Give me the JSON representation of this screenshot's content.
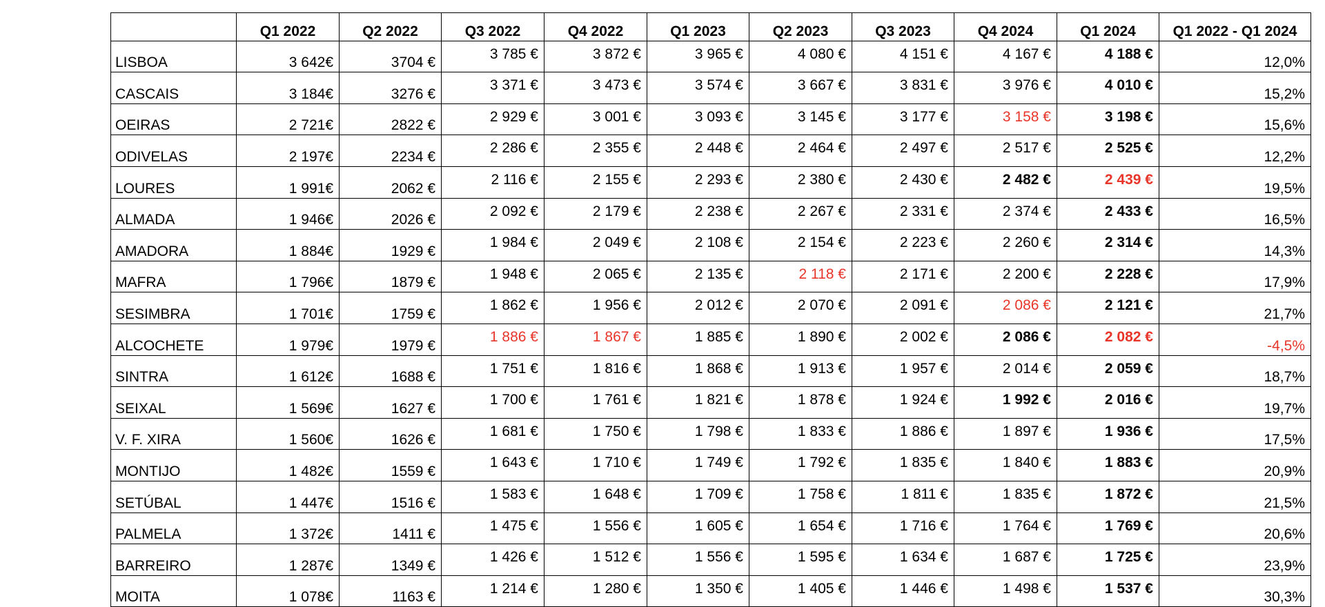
{
  "table": {
    "headers": [
      "",
      "Q1 2022",
      "Q2 2022",
      "Q3 2022",
      "Q4 2022",
      "Q1 2023",
      "Q2 2023",
      "Q3 2023",
      "Q4 2024",
      "Q1 2024",
      "Q1 2022 - Q1 2024"
    ],
    "rows": [
      {
        "name": "LISBOA",
        "q1_2022": "3 642€",
        "q2_2022": "3704 €",
        "vals": [
          "3 785 €",
          "3 872 €",
          "3 965 €",
          "4 080 €",
          "4 151 €",
          "4 167 €",
          "4 188 €"
        ],
        "change": "12,0%"
      },
      {
        "name": "CASCAIS",
        "q1_2022": "3 184€",
        "q2_2022": "3276 €",
        "vals": [
          "3 371 €",
          "3 473 €",
          "3 574 €",
          "3 667 €",
          "3 831 €",
          "3 976 €",
          "4 010 €"
        ],
        "change": "15,2%"
      },
      {
        "name": "OEIRAS",
        "q1_2022": "2 721€",
        "q2_2022": "2822 €",
        "vals": [
          "2 929 €",
          "3 001 €",
          "3 093 €",
          "3 145 €",
          "3 177 €",
          "3 158 €",
          "3 198 €"
        ],
        "change": "15,6%"
      },
      {
        "name": "ODIVELAS",
        "q1_2022": "2 197€",
        "q2_2022": "2234 €",
        "vals": [
          "2 286 €",
          "2 355 €",
          "2 448 €",
          "2 464 €",
          "2 497 €",
          "2 517 €",
          "2 525 €"
        ],
        "change": "12,2%"
      },
      {
        "name": "LOURES",
        "q1_2022": "1 991€",
        "q2_2022": "2062 €",
        "vals": [
          "2 116 €",
          "2 155 €",
          "2 293 €",
          "2 380 €",
          "2 430 €",
          "2 482 €",
          "2 439 €"
        ],
        "change": "19,5%"
      },
      {
        "name": "ALMADA",
        "q1_2022": "1 946€",
        "q2_2022": "2026 €",
        "vals": [
          "2 092 €",
          "2 179 €",
          "2 238 €",
          "2 267 €",
          "2 331 €",
          "2 374 €",
          "2 433 €"
        ],
        "change": "16,5%"
      },
      {
        "name": "AMADORA",
        "q1_2022": "1 884€",
        "q2_2022": "1929 €",
        "vals": [
          "1 984 €",
          "2 049 €",
          "2 108 €",
          "2 154 €",
          "2 223 €",
          "2 260 €",
          "2 314 €"
        ],
        "change": "14,3%"
      },
      {
        "name": "MAFRA",
        "q1_2022": "1 796€",
        "q2_2022": "1879 €",
        "vals": [
          "1 948 €",
          "2 065 €",
          "2 135 €",
          "2 118 €",
          "2 171 €",
          "2 200 €",
          "2 228 €"
        ],
        "change": "17,9%"
      },
      {
        "name": "SESIMBRA",
        "q1_2022": "1 701€",
        "q2_2022": "1759 €",
        "vals": [
          "1 862 €",
          "1 956 €",
          "2 012 €",
          "2 070 €",
          "2 091 €",
          "2 086 €",
          "2 121 €"
        ],
        "change": "21,7%"
      },
      {
        "name": "ALCOCHETE",
        "q1_2022": "1 979€",
        "q2_2022": "1979 €",
        "vals": [
          "1 886 €",
          "1 867 €",
          "1 885 €",
          "1 890 €",
          "2 002 €",
          "2 086 €",
          "2 082 €"
        ],
        "change": "-4,5%"
      },
      {
        "name": "SINTRA",
        "q1_2022": "1 612€",
        "q2_2022": "1688 €",
        "vals": [
          "1 751 €",
          "1 816 €",
          "1 868 €",
          "1 913 €",
          "1 957 €",
          "2 014 €",
          "2 059 €"
        ],
        "change": "18,7%"
      },
      {
        "name": "SEIXAL",
        "q1_2022": "1 569€",
        "q2_2022": "1627 €",
        "vals": [
          "1 700 €",
          "1 761 €",
          "1 821 €",
          "1 878 €",
          "1 924 €",
          "1 992 €",
          "2 016 €"
        ],
        "change": "19,7%"
      },
      {
        "name": "V. F. XIRA",
        "q1_2022": "1 560€",
        "q2_2022": "1626 €",
        "vals": [
          "1 681 €",
          "1 750 €",
          "1 798 €",
          "1 833 €",
          "1 886 €",
          "1 897 €",
          "1 936 €"
        ],
        "change": "17,5%"
      },
      {
        "name": "MONTIJO",
        "q1_2022": "1 482€",
        "q2_2022": "1559 €",
        "vals": [
          "1 643 €",
          "1 710 €",
          "1 749 €",
          "1 792 €",
          "1 835 €",
          "1 840 €",
          "1 883 €"
        ],
        "change": "20,9%"
      },
      {
        "name": "SETÚBAL",
        "q1_2022": "1 447€",
        "q2_2022": "1516 €",
        "vals": [
          "1 583 €",
          "1 648 €",
          "1 709 €",
          "1 758 €",
          "1 811 €",
          "1 835 €",
          "1 872 €"
        ],
        "change": "21,5%"
      },
      {
        "name": "PALMELA",
        "q1_2022": "1 372€",
        "q2_2022": "1411 €",
        "vals": [
          "1 475 €",
          "1 556 €",
          "1 605 €",
          "1 654 €",
          "1 716 €",
          "1 764 €",
          "1 769 €"
        ],
        "change": "20,6%"
      },
      {
        "name": "BARREIRO",
        "q1_2022": "1 287€",
        "q2_2022": "1349 €",
        "vals": [
          "1 426 €",
          "1 512 €",
          "1 556 €",
          "1 595 €",
          "1 634 €",
          "1 687 €",
          "1 725 €"
        ],
        "change": "23,9%"
      },
      {
        "name": "MOITA",
        "q1_2022": "1 078€",
        "q2_2022": "1163 €",
        "vals": [
          "1 214 €",
          "1 280 €",
          "1 350 €",
          "1 405 €",
          "1 446 €",
          "1 498 €",
          "1 537 €"
        ],
        "change": "30,3%"
      }
    ],
    "highlight_color": "#e8362b",
    "red_cells": [
      [
        "OEIRAS",
        "Q4 2024"
      ],
      [
        "LOURES",
        "Q1 2024"
      ],
      [
        "MAFRA",
        "Q2 2023"
      ],
      [
        "SESIMBRA",
        "Q4 2024"
      ],
      [
        "ALCOCHETE",
        "Q3 2022"
      ],
      [
        "ALCOCHETE",
        "Q4 2022"
      ],
      [
        "ALCOCHETE",
        "Q1 2024"
      ],
      [
        "ALCOCHETE",
        "Q1 2022 - Q1 2024"
      ]
    ],
    "bold_cells": [
      [
        "LOURES",
        "Q4 2024"
      ],
      [
        "ALCOCHETE",
        "Q4 2024"
      ],
      [
        "SEIXAL",
        "Q4 2024"
      ]
    ],
    "bold_column": "Q1 2024"
  }
}
